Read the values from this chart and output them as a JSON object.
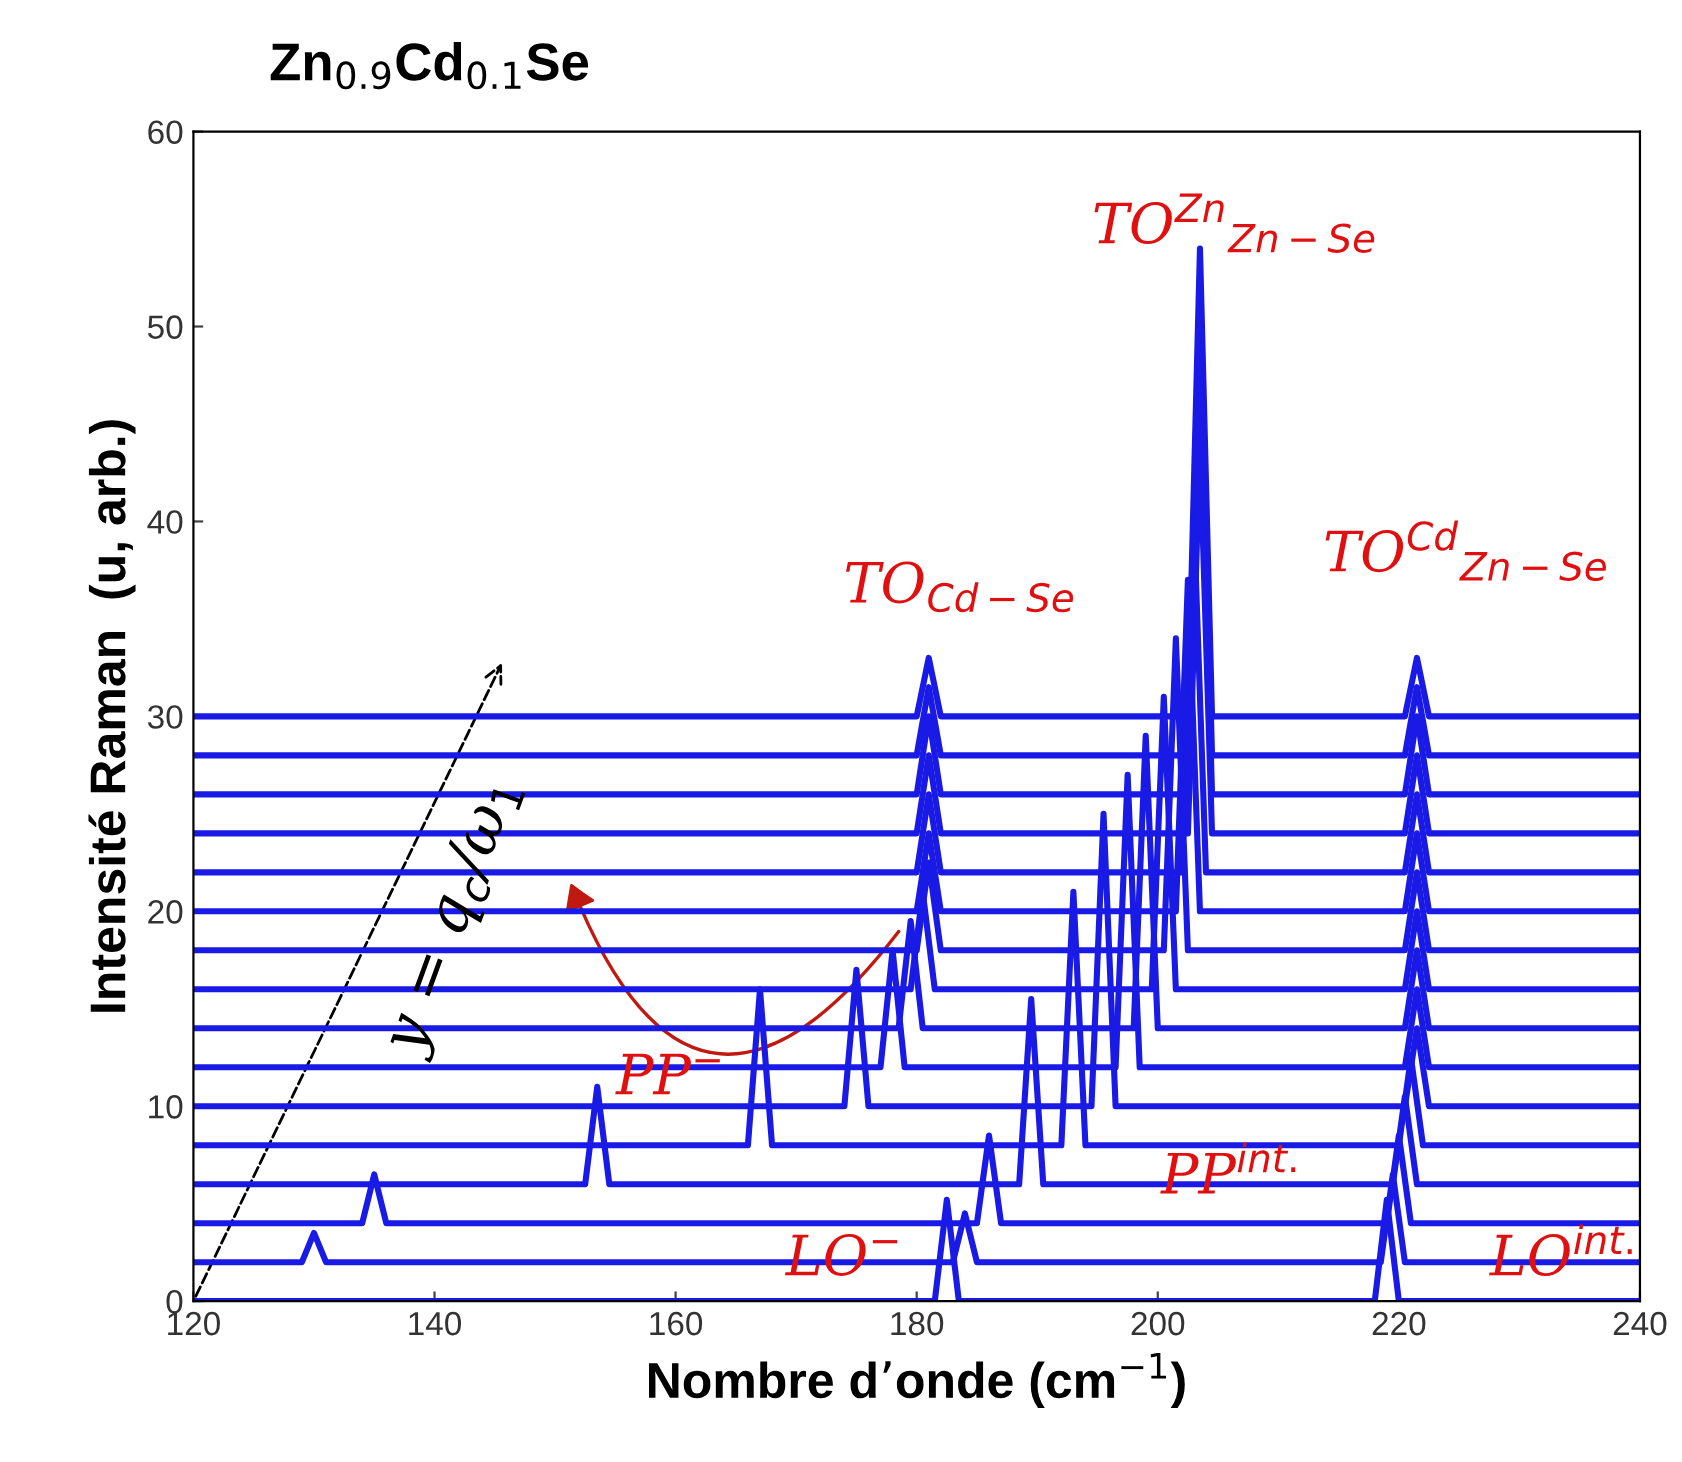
{
  "chart_data": {
    "type": "line",
    "title": "Zn$_{0.9}$Cd$_{0.1}$Se",
    "xlabel": "Nombre d’onde (cm$^{−1}$)",
    "ylabel": "Intensité Raman  (u, arb.)",
    "xlim": [
      120,
      240
    ],
    "xticks": [
      120,
      140,
      160,
      180,
      200,
      220,
      240
    ],
    "ylim": [
      0,
      60
    ],
    "yticks": [
      0,
      10,
      20,
      30,
      40,
      50,
      60
    ],
    "grid": false,
    "series": [
      {
        "color": "#1a1ae6",
        "x": [
          120,
          181.5,
          182.5,
          183.5,
          218,
          219,
          220,
          240
        ],
        "values": [
          0,
          0,
          5.2,
          0,
          0,
          5.2,
          0,
          0
        ]
      },
      {
        "color": "#1a1ae6",
        "x": [
          120,
          129,
          130,
          131,
          183,
          184,
          185,
          218.5,
          219.5,
          220.5,
          240
        ],
        "values": [
          2,
          2,
          3.5,
          2,
          2,
          4.5,
          2,
          2,
          6.5,
          2,
          2
        ]
      },
      {
        "color": "#1a1ae6",
        "x": [
          120,
          134,
          135,
          136,
          185,
          186,
          187,
          219,
          220,
          221,
          240
        ],
        "values": [
          4,
          4,
          6.5,
          4,
          4,
          8.5,
          4,
          4,
          8.5,
          4,
          4
        ]
      },
      {
        "color": "#1a1ae6",
        "x": [
          120,
          152.5,
          153.5,
          154.5,
          188.5,
          189.5,
          190.5,
          219.5,
          220.5,
          221.5,
          240
        ],
        "values": [
          6,
          6,
          11,
          6,
          6,
          15.5,
          6,
          6,
          10.5,
          6,
          6
        ]
      },
      {
        "color": "#1a1ae6",
        "x": [
          120,
          166,
          167,
          168,
          192,
          193,
          194,
          220,
          221,
          222,
          240
        ],
        "values": [
          8,
          8,
          16,
          8,
          8,
          21,
          8,
          8,
          12.5,
          8,
          8
        ]
      },
      {
        "color": "#1a1ae6",
        "x": [
          120,
          174,
          175,
          176,
          194.5,
          195.5,
          196.5,
          220.5,
          221.5,
          222.5,
          240
        ],
        "values": [
          10,
          10,
          17,
          10,
          10,
          25,
          10,
          10,
          14,
          10,
          10
        ]
      },
      {
        "color": "#1a1ae6",
        "x": [
          120,
          177,
          178,
          179,
          196.5,
          197.5,
          198.5,
          220.5,
          221.5,
          222.5,
          240
        ],
        "values": [
          12,
          12,
          18,
          12,
          12,
          27,
          12,
          12,
          16,
          12,
          12
        ]
      },
      {
        "color": "#1a1ae6",
        "x": [
          120,
          178.5,
          179.5,
          180.5,
          198,
          199,
          200,
          220.5,
          221.5,
          222.5,
          240
        ],
        "values": [
          14,
          14,
          19.5,
          14,
          14,
          29,
          14,
          14,
          18,
          14,
          14
        ]
      },
      {
        "color": "#1a1ae6",
        "x": [
          120,
          179.5,
          180.5,
          181.5,
          199.5,
          200.5,
          201.5,
          220.5,
          221.5,
          222.5,
          240
        ],
        "values": [
          16,
          16,
          21,
          16,
          16,
          31,
          16,
          16,
          20,
          16,
          16
        ]
      },
      {
        "color": "#1a1ae6",
        "x": [
          120,
          180,
          181,
          182,
          200.5,
          201.5,
          202.5,
          220.5,
          221.5,
          222.5,
          240
        ],
        "values": [
          18,
          18,
          22.5,
          18,
          18,
          34,
          18,
          18,
          22,
          18,
          18
        ]
      },
      {
        "color": "#1a1ae6",
        "x": [
          120,
          180,
          181,
          182,
          201.5,
          202.5,
          203.5,
          220.5,
          221.5,
          222.5,
          240
        ],
        "values": [
          20,
          20,
          24,
          20,
          20,
          37,
          20,
          20,
          24,
          20,
          20
        ]
      },
      {
        "color": "#1a1ae6",
        "x": [
          120,
          180,
          181,
          182,
          202,
          203,
          204,
          220.5,
          221.5,
          222.5,
          240
        ],
        "values": [
          22,
          22,
          26,
          22,
          22,
          40,
          22,
          22,
          26,
          22,
          22
        ]
      },
      {
        "color": "#1a1ae6",
        "x": [
          120,
          180,
          181,
          182,
          202.5,
          203.5,
          204.5,
          220.5,
          221.5,
          222.5,
          240
        ],
        "values": [
          24,
          24,
          28,
          24,
          24,
          44,
          24,
          24,
          28,
          24,
          24
        ]
      },
      {
        "color": "#1a1ae6",
        "x": [
          120,
          180,
          181,
          182,
          202.5,
          203.5,
          204.5,
          220.5,
          221.5,
          222.5,
          240
        ],
        "values": [
          26,
          26,
          30,
          26,
          26,
          48,
          26,
          26,
          30,
          26,
          26
        ]
      },
      {
        "color": "#1a1ae6",
        "x": [
          120,
          180,
          181,
          182,
          202.5,
          203.5,
          204.5,
          220.5,
          221.5,
          222.5,
          240
        ],
        "values": [
          28,
          28,
          31.5,
          28,
          28,
          51,
          28,
          28,
          31.5,
          28,
          28
        ]
      },
      {
        "color": "#1a1ae6",
        "x": [
          120,
          180,
          181,
          182,
          202.5,
          203.5,
          204.5,
          220.5,
          221.5,
          222.5,
          240
        ],
        "values": [
          30,
          30,
          33,
          30,
          30,
          54,
          30,
          30,
          33,
          30,
          30
        ]
      }
    ],
    "annotations": [
      "TO$_{Cd−Se}$",
      "TO$^{Zn}$$_{Zn−Se}$",
      "TO$^{Cd}$$_{Zn−Se}$",
      "PP$^{−}$",
      "PP$^{int.}$",
      "LO$^{−}$",
      "LO$^{int.}$",
      "y = q$_{c}$/ω$_{1}$"
    ]
  }
}
